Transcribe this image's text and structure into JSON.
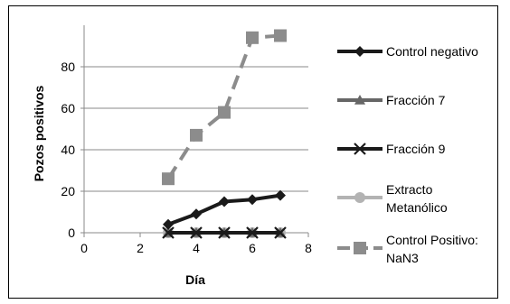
{
  "chart_data": {
    "type": "line",
    "title": "",
    "xlabel": "Día",
    "ylabel": "Pozos positivos",
    "xlim": [
      0,
      8
    ],
    "ylim": [
      0,
      100
    ],
    "xticks": [
      0,
      2,
      4,
      6,
      8
    ],
    "yticks": [
      0,
      20,
      40,
      60,
      80
    ],
    "grid": "horizontal",
    "legend": "right",
    "series": [
      {
        "name": "Control negativo",
        "x": [
          3,
          4,
          5,
          6,
          7
        ],
        "y": [
          4,
          9,
          15,
          16,
          18
        ],
        "color": "#1a1a1a",
        "dash": "solid",
        "marker": "diamond"
      },
      {
        "name": "Fracción 7",
        "x": [
          3,
          4,
          5,
          6,
          7
        ],
        "y": [
          0,
          0,
          0,
          0,
          0
        ],
        "color": "#666666",
        "dash": "solid",
        "marker": "triangle"
      },
      {
        "name": "Fracción 9",
        "x": [
          3,
          4,
          5,
          6,
          7
        ],
        "y": [
          0,
          0,
          0,
          0,
          0
        ],
        "color": "#1a1a1a",
        "dash": "solid",
        "marker": "x"
      },
      {
        "name": "Extracto Metanólico",
        "x": [
          3,
          4,
          5,
          6,
          7
        ],
        "y": [
          0,
          0,
          0,
          0,
          0
        ],
        "color": "#b3b3b3",
        "dash": "solid",
        "marker": "circle"
      },
      {
        "name": "Control Positivo: NaN3",
        "x": [
          3,
          4,
          5,
          6,
          7
        ],
        "y": [
          26,
          47,
          58,
          94,
          95
        ],
        "color": "#8c8c8c",
        "dash": "dashed",
        "marker": "square"
      }
    ]
  }
}
